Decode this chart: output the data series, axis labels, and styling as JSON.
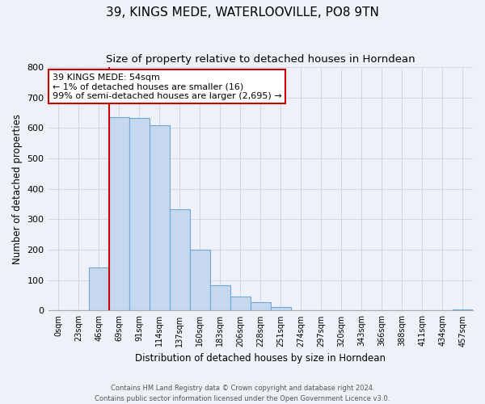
{
  "title": "39, KINGS MEDE, WATERLOOVILLE, PO8 9TN",
  "subtitle": "Size of property relative to detached houses in Horndean",
  "xlabel": "Distribution of detached houses by size in Horndean",
  "ylabel": "Number of detached properties",
  "footnote1": "Contains HM Land Registry data © Crown copyright and database right 2024.",
  "footnote2": "Contains public sector information licensed under the Open Government Licence v3.0.",
  "bar_labels": [
    "0sqm",
    "23sqm",
    "46sqm",
    "69sqm",
    "91sqm",
    "114sqm",
    "137sqm",
    "160sqm",
    "183sqm",
    "206sqm",
    "228sqm",
    "251sqm",
    "274sqm",
    "297sqm",
    "320sqm",
    "343sqm",
    "366sqm",
    "388sqm",
    "411sqm",
    "434sqm",
    "457sqm"
  ],
  "bar_values": [
    0,
    0,
    143,
    635,
    632,
    610,
    332,
    200,
    83,
    46,
    27,
    12,
    0,
    0,
    0,
    0,
    0,
    0,
    0,
    0,
    4
  ],
  "bar_color": "#c5d8ee",
  "bar_edge_color": "#6fa8d4",
  "property_line_x": 2.5,
  "annotation_title": "39 KINGS MEDE: 54sqm",
  "annotation_line1": "← 1% of detached houses are smaller (16)",
  "annotation_line2": "99% of semi-detached houses are larger (2,695) →",
  "annotation_box_color": "#ffffff",
  "annotation_box_edge_color": "#cc0000",
  "ylim": [
    0,
    800
  ],
  "yticks": [
    0,
    100,
    200,
    300,
    400,
    500,
    600,
    700,
    800
  ],
  "vline_color": "#cc0000",
  "title_fontsize": 11,
  "subtitle_fontsize": 9.5,
  "bg_color": "#eef2f8",
  "grid_color": "#d0d8e8"
}
